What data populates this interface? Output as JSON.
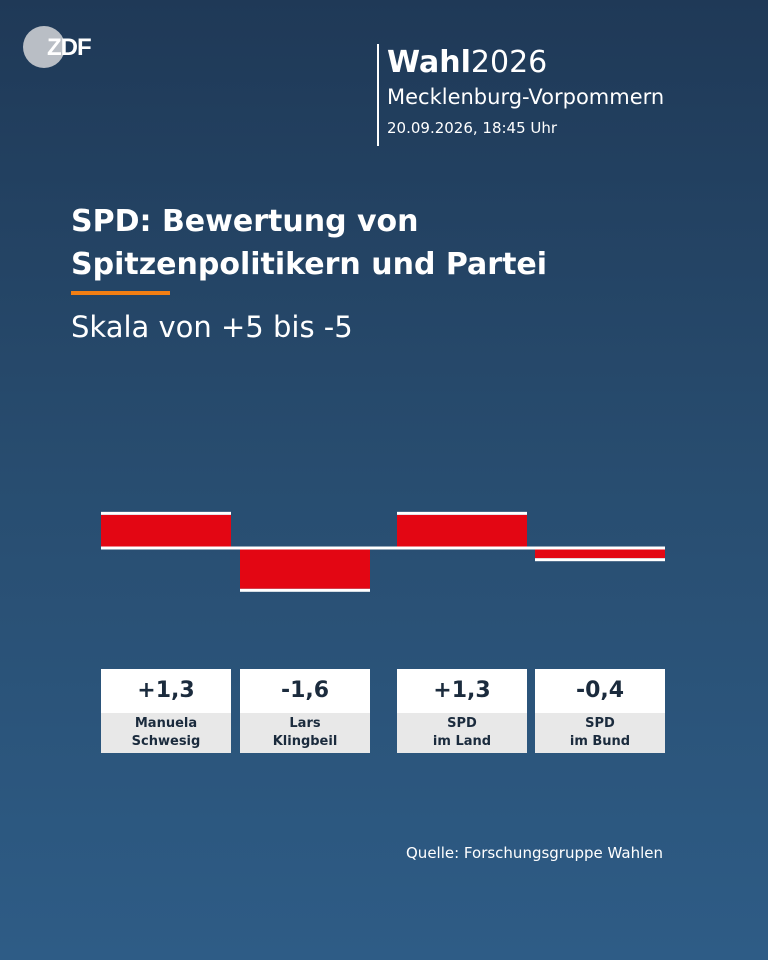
{
  "logo": {
    "text": "ZDF"
  },
  "header": {
    "brand_bold": "Wahl",
    "brand_year": "2026",
    "region": "Mecklenburg-Vorpommern",
    "datetime": "20.09.2026, 18:45 Uhr"
  },
  "title_lines": [
    "SPD: Bewertung von",
    "Spitzenpolitikern und Partei"
  ],
  "subtitle": "Skala von +5 bis -5",
  "source": "Quelle: Forschungsgruppe Wahlen",
  "colors": {
    "bar": "#e30613",
    "accent": "#f27f14",
    "baseline": "#ffffff"
  },
  "chart_data": {
    "type": "bar",
    "title": "SPD: Bewertung von Spitzenpolitikern und Partei",
    "subtitle": "Skala von +5 bis -5",
    "ylim": [
      -5,
      5
    ],
    "categories": [
      {
        "lines": [
          "Manuela",
          "Schwesig"
        ]
      },
      {
        "lines": [
          "Lars",
          "Klingbeil"
        ]
      },
      {
        "lines": [
          "SPD",
          "im Land"
        ]
      },
      {
        "lines": [
          "SPD",
          "im Bund"
        ]
      }
    ],
    "values": [
      1.3,
      -1.6,
      1.3,
      -0.4
    ],
    "value_labels": [
      "+1,3",
      "-1,6",
      "+1,3",
      "-0,4"
    ]
  }
}
